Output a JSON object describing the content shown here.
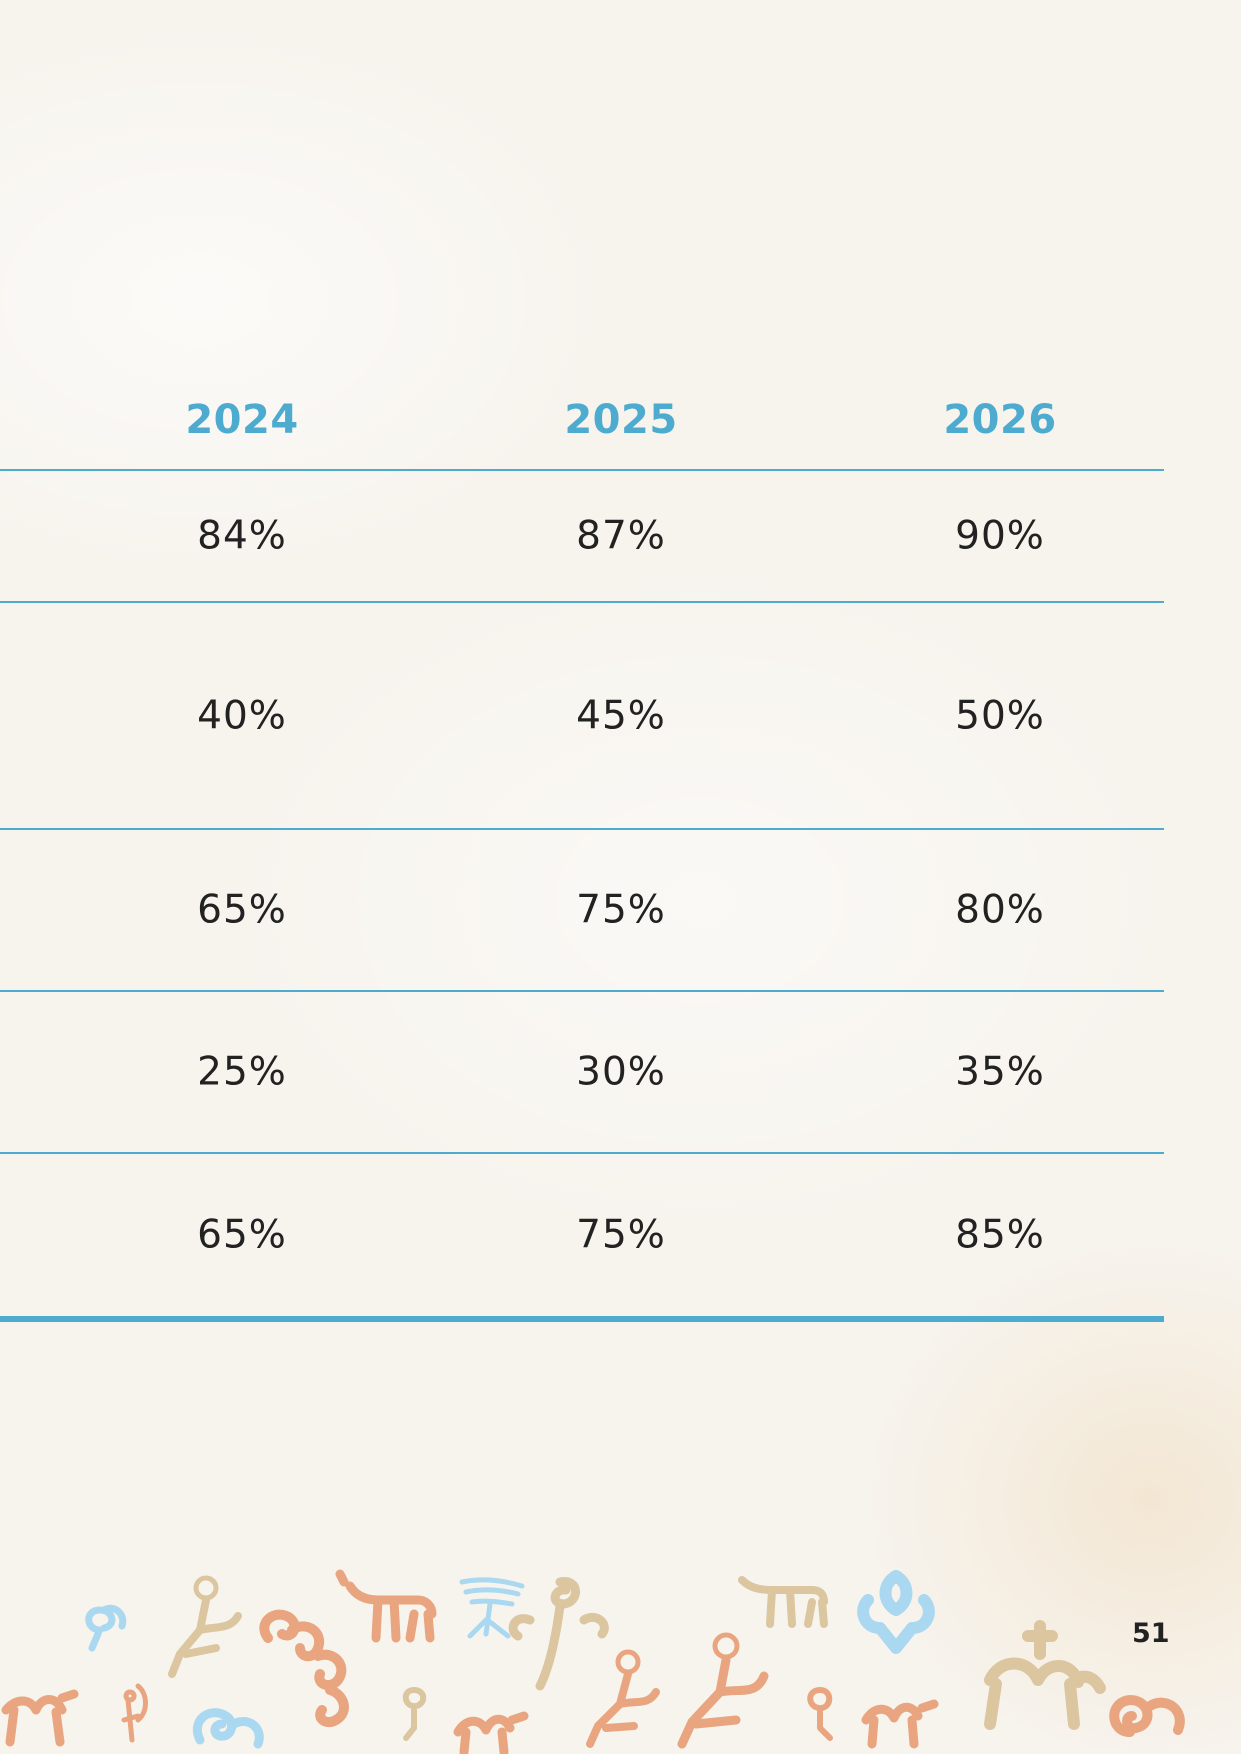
{
  "table": {
    "headers": [
      "2024",
      "2025",
      "2026"
    ],
    "rows": [
      [
        "84%",
        "87%",
        "90%"
      ],
      [
        "40%",
        "45%",
        "50%"
      ],
      [
        "65%",
        "75%",
        "80%"
      ],
      [
        "25%",
        "30%",
        "35%"
      ],
      [
        "65%",
        "75%",
        "85%"
      ]
    ]
  },
  "page_number": "51",
  "colors": {
    "accent": "#4eabd0",
    "ornament_orange": "#e8a57f",
    "ornament_tan": "#dcc6a0",
    "ornament_blue": "#a9d8f0"
  },
  "decoration": {
    "icon": "petroglyph-ornament-border-icon"
  }
}
